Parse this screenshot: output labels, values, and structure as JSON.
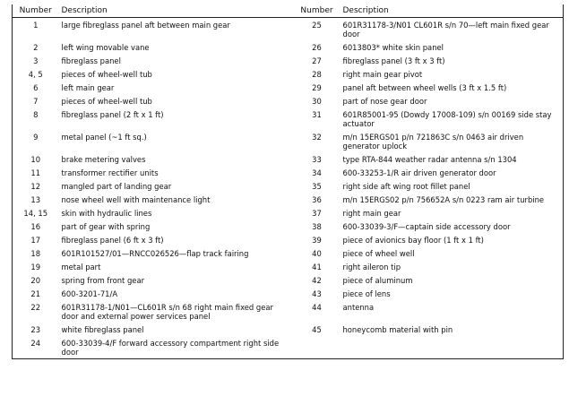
{
  "table": {
    "headers": [
      "Number",
      "Description",
      "Number",
      "Description"
    ],
    "rows": [
      [
        "1",
        "large fibreglass panel aft between main gear",
        "25",
        "601R31178-3/N01 CL601R s/n 70—left main fixed gear door"
      ],
      [
        "2",
        "left wing movable vane",
        "26",
        "6013803* white skin panel"
      ],
      [
        "3",
        "fibreglass panel",
        "27",
        "fibreglass panel (3 ft x 3 ft)"
      ],
      [
        "4, 5",
        "pieces of wheel-well tub",
        "28",
        "right main gear pivot"
      ],
      [
        "6",
        "left main gear",
        "29",
        "panel aft between wheel wells (3 ft x 1.5 ft)"
      ],
      [
        "7",
        "pieces of wheel-well tub",
        "30",
        "part of nose gear door"
      ],
      [
        "8",
        "fibreglass panel (2 ft x 1 ft)",
        "31",
        "601R85001-95 (Dowdy 17008-109) s/n 00169 side stay actuator"
      ],
      [
        "9",
        "metal panel (~1 ft sq.)",
        "32",
        "m/n 15ERGS01 p/n 721863C s/n 0463 air driven generator uplock"
      ],
      [
        "10",
        "brake metering valves",
        "33",
        "type RTA-844 weather radar antenna s/n 1304"
      ],
      [
        "11",
        "transformer rectifier units",
        "34",
        "600-33253-1/R air driven generator door"
      ],
      [
        "12",
        "mangled part of landing gear",
        "35",
        "right side aft wing root fillet panel"
      ],
      [
        "13",
        "nose wheel well with maintenance light",
        "36",
        "m/n 15ERGS02 p/n 756652A s/n 0223 ram air turbine"
      ],
      [
        "14, 15",
        "skin with hydraulic lines",
        "37",
        "right main gear"
      ],
      [
        "16",
        "part of gear with spring",
        "38",
        "600-33039-3/F—captain side accessory door"
      ],
      [
        "17",
        "fibreglass panel (6 ft x 3 ft)",
        "39",
        "piece of avionics bay floor (1 ft x 1 ft)"
      ],
      [
        "18",
        "601R101527/01—RNCC026526—flap track fairing",
        "40",
        "piece of wheel well"
      ],
      [
        "19",
        "metal part",
        "41",
        "right aileron tip"
      ],
      [
        "20",
        "spring from front gear",
        "42",
        "piece of aluminum"
      ],
      [
        "21",
        "600-3201-71/A",
        "43",
        "piece of lens"
      ],
      [
        "22",
        "601R31178-1/N01—CL601R s/n 68 right main fixed gear door and external power services panel",
        "44",
        "antenna"
      ],
      [
        "23",
        "white fibreglass panel",
        "45",
        "honeycomb material with pin"
      ],
      [
        "24",
        "600-33039-4/F forward accessory compartment right side door"
      ]
    ]
  }
}
